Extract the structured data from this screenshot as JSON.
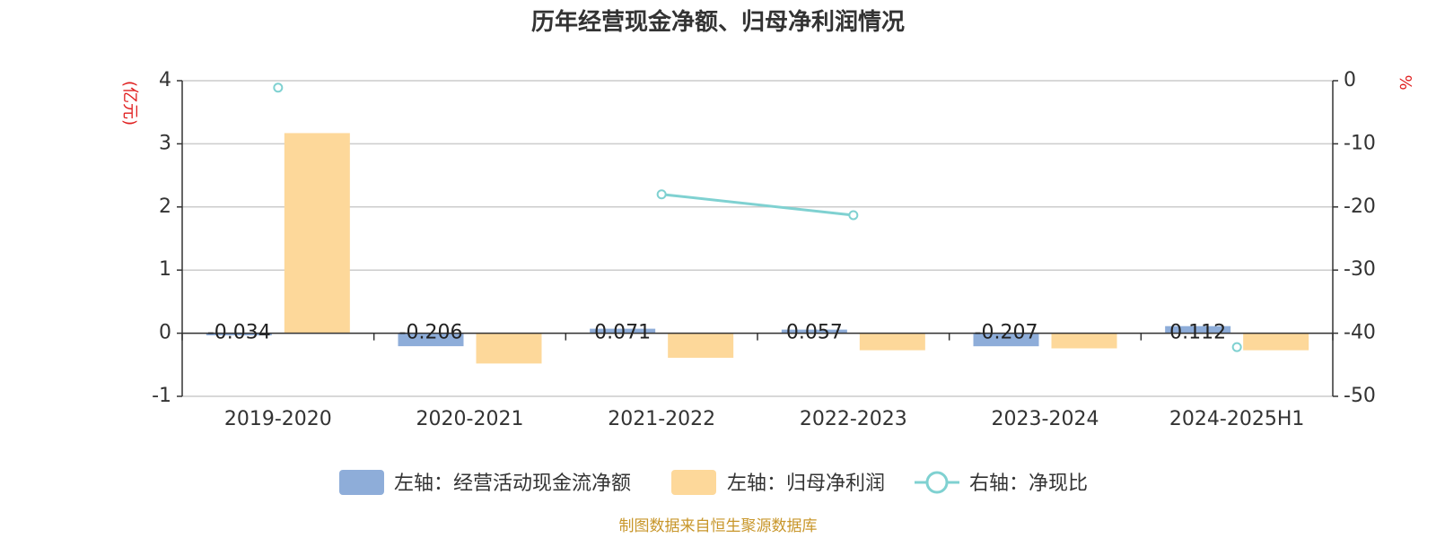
{
  "chart_data": {
    "type": "bar",
    "title": "历年经营现金净额、归母净利润情况",
    "categories": [
      "2019-2020",
      "2020-2021",
      "2021-2022",
      "2022-2023",
      "2023-2024",
      "2024-2025H1"
    ],
    "left_axis": {
      "unit": "(亿元)",
      "ylim": [
        -1,
        4
      ],
      "ticks": [
        "4",
        "3",
        "2",
        "1",
        "0",
        "-1"
      ]
    },
    "right_axis": {
      "unit": "%",
      "ylim": [
        -50,
        0
      ],
      "ticks": [
        "0",
        "-10",
        "-20",
        "-30",
        "-40",
        "-50"
      ]
    },
    "series": [
      {
        "name": "左轴：经营活动现金流净额",
        "kind": "bar",
        "axis": "left",
        "color": "#8eadd9",
        "values": [
          -0.034,
          -0.206,
          0.071,
          0.057,
          -0.207,
          0.112
        ],
        "labels": [
          "-0.034",
          "-0.206",
          "0.071",
          "0.057",
          "-0.207",
          "0.112"
        ]
      },
      {
        "name": "左轴：归母净利润",
        "kind": "bar",
        "axis": "left",
        "color": "#fdd89a",
        "values": [
          3.17,
          -0.48,
          -0.39,
          -0.27,
          -0.24,
          -0.27
        ]
      },
      {
        "name": "右轴：净现比",
        "kind": "line",
        "axis": "right",
        "color": "#7fd1d1",
        "values": [
          -1.1,
          null,
          -18.0,
          -21.3,
          null,
          -42.2
        ]
      }
    ],
    "grid": true,
    "legend": "bottom"
  },
  "source": "制图数据来自恒生聚源数据库"
}
